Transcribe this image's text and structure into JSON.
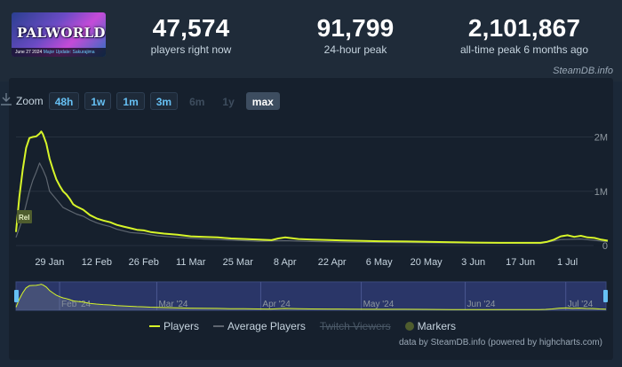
{
  "game": {
    "logo_text": "PALWORLD",
    "banner_date": "June 27 2024",
    "banner_update": "Major Update: Sakurajima"
  },
  "stats": [
    {
      "value": "47,574",
      "label": "players right now"
    },
    {
      "value": "91,799",
      "label": "24-hour peak"
    },
    {
      "value": "2,101,867",
      "label": "all-time peak 6 months ago"
    }
  ],
  "credit": "SteamDB.info",
  "zoom": {
    "label": "Zoom",
    "options": [
      {
        "label": "48h",
        "state": "enabled"
      },
      {
        "label": "1w",
        "state": "enabled"
      },
      {
        "label": "1m",
        "state": "enabled"
      },
      {
        "label": "3m",
        "state": "enabled"
      },
      {
        "label": "6m",
        "state": "disabled"
      },
      {
        "label": "1y",
        "state": "disabled"
      },
      {
        "label": "max",
        "state": "selected"
      }
    ]
  },
  "chart_data": {
    "type": "line",
    "title": "",
    "xlabel": "",
    "ylabel": "",
    "x_unit": "days since 2024-01-19",
    "x_range": [
      0,
      176
    ],
    "ylim": [
      0,
      2400000
    ],
    "y_ticks": [
      {
        "value": 0,
        "label": "0"
      },
      {
        "value": 1000000,
        "label": "1M"
      },
      {
        "value": 2000000,
        "label": "2M"
      }
    ],
    "x_ticks": [
      {
        "value": 10,
        "label": "29 Jan"
      },
      {
        "value": 24,
        "label": "12 Feb"
      },
      {
        "value": 38,
        "label": "26 Feb"
      },
      {
        "value": 52,
        "label": "11 Mar"
      },
      {
        "value": 66,
        "label": "25 Mar"
      },
      {
        "value": 80,
        "label": "8 Apr"
      },
      {
        "value": 94,
        "label": "22 Apr"
      },
      {
        "value": 108,
        "label": "6 May"
      },
      {
        "value": 122,
        "label": "20 May"
      },
      {
        "value": 136,
        "label": "3 Jun"
      },
      {
        "value": 150,
        "label": "17 Jun"
      },
      {
        "value": 164,
        "label": "1 Jul"
      }
    ],
    "grid": true,
    "series": [
      {
        "name": "Players",
        "color": "#d7f529",
        "points": [
          [
            0,
            250000
          ],
          [
            1,
            900000
          ],
          [
            2,
            1400000
          ],
          [
            3,
            1800000
          ],
          [
            4,
            1980000
          ],
          [
            5,
            2000000
          ],
          [
            6,
            2010000
          ],
          [
            7,
            2060000
          ],
          [
            7.5,
            2101867
          ],
          [
            8,
            2050000
          ],
          [
            9,
            1880000
          ],
          [
            10,
            1600000
          ],
          [
            11,
            1400000
          ],
          [
            12,
            1220000
          ],
          [
            13,
            1100000
          ],
          [
            14,
            1000000
          ],
          [
            15,
            940000
          ],
          [
            16,
            860000
          ],
          [
            17,
            760000
          ],
          [
            18,
            720000
          ],
          [
            20,
            660000
          ],
          [
            22,
            560000
          ],
          [
            24,
            500000
          ],
          [
            26,
            460000
          ],
          [
            28,
            430000
          ],
          [
            30,
            380000
          ],
          [
            32,
            350000
          ],
          [
            34,
            320000
          ],
          [
            36,
            290000
          ],
          [
            38,
            280000
          ],
          [
            40,
            250000
          ],
          [
            44,
            220000
          ],
          [
            48,
            200000
          ],
          [
            52,
            170000
          ],
          [
            56,
            160000
          ],
          [
            60,
            150000
          ],
          [
            64,
            130000
          ],
          [
            68,
            120000
          ],
          [
            72,
            110000
          ],
          [
            76,
            100000
          ],
          [
            78,
            130000
          ],
          [
            80,
            150000
          ],
          [
            84,
            120000
          ],
          [
            88,
            110000
          ],
          [
            94,
            100000
          ],
          [
            100,
            90000
          ],
          [
            108,
            80000
          ],
          [
            116,
            75000
          ],
          [
            122,
            70000
          ],
          [
            130,
            60000
          ],
          [
            136,
            55000
          ],
          [
            144,
            50000
          ],
          [
            150,
            50000
          ],
          [
            156,
            50000
          ],
          [
            158,
            70000
          ],
          [
            160,
            110000
          ],
          [
            162,
            170000
          ],
          [
            164,
            190000
          ],
          [
            166,
            160000
          ],
          [
            168,
            180000
          ],
          [
            170,
            150000
          ],
          [
            172,
            140000
          ],
          [
            174,
            110000
          ],
          [
            176,
            90000
          ]
        ]
      },
      {
        "name": "Average Players",
        "color": "#5e6670",
        "points": [
          [
            0,
            150000
          ],
          [
            2,
            500000
          ],
          [
            4,
            1000000
          ],
          [
            5,
            1200000
          ],
          [
            6,
            1350000
          ],
          [
            7,
            1520000
          ],
          [
            8,
            1400000
          ],
          [
            9,
            1250000
          ],
          [
            10,
            1000000
          ],
          [
            12,
            850000
          ],
          [
            14,
            700000
          ],
          [
            16,
            640000
          ],
          [
            18,
            580000
          ],
          [
            20,
            540000
          ],
          [
            22,
            470000
          ],
          [
            24,
            420000
          ],
          [
            26,
            380000
          ],
          [
            28,
            350000
          ],
          [
            30,
            300000
          ],
          [
            34,
            240000
          ],
          [
            38,
            220000
          ],
          [
            42,
            180000
          ],
          [
            48,
            150000
          ],
          [
            56,
            120000
          ],
          [
            64,
            100000
          ],
          [
            72,
            80000
          ],
          [
            80,
            90000
          ],
          [
            88,
            75000
          ],
          [
            100,
            60000
          ],
          [
            116,
            55000
          ],
          [
            136,
            45000
          ],
          [
            156,
            40000
          ],
          [
            162,
            110000
          ],
          [
            168,
            120000
          ],
          [
            176,
            70000
          ]
        ]
      }
    ],
    "navigator": {
      "x_ticks": [
        {
          "value": 13,
          "label": "Feb '24"
        },
        {
          "value": 42,
          "label": "Mar '24"
        },
        {
          "value": 73,
          "label": "Apr '24"
        },
        {
          "value": 103,
          "label": "May '24"
        },
        {
          "value": 134,
          "label": "Jun '24"
        },
        {
          "value": 164,
          "label": "Jul '24"
        }
      ]
    },
    "release_marker": {
      "label": "Rel",
      "x": 0
    }
  },
  "legend": {
    "players": "Players",
    "average": "Average Players",
    "twitch": "Twitch Viewers",
    "markers": "Markers"
  },
  "footer_credit": "data by SteamDB.info (powered by highcharts.com)"
}
